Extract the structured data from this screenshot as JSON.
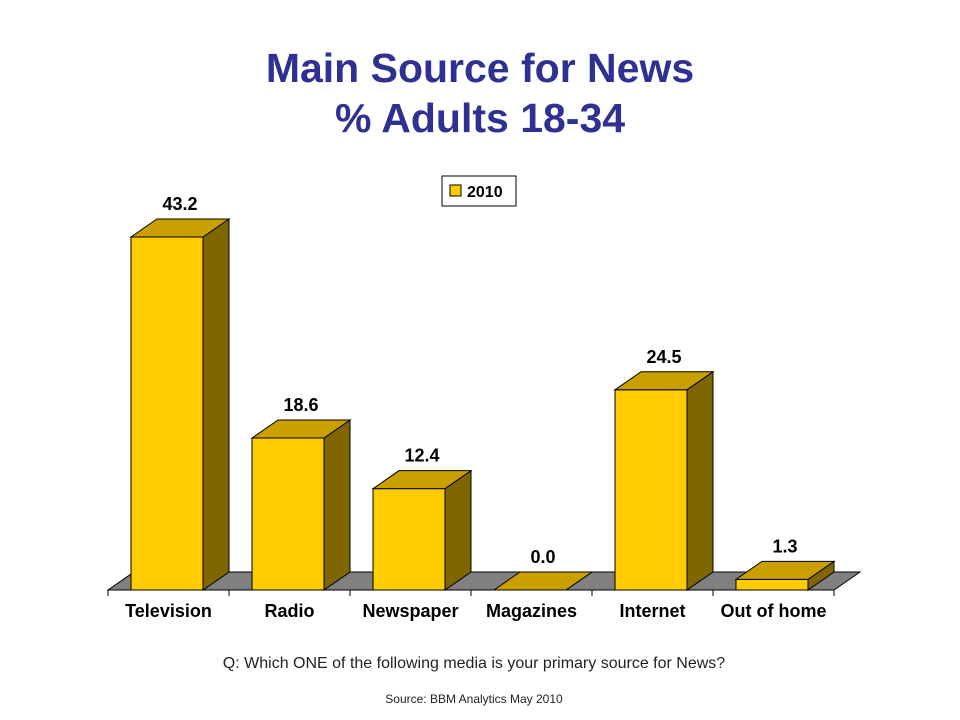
{
  "chart_data": {
    "type": "bar",
    "title": [
      "Main Source for News",
      "% Adults 18-34"
    ],
    "categories": [
      "Television",
      "Radio",
      "Newspaper",
      "Magazines",
      "Internet",
      "Out of home"
    ],
    "series": [
      {
        "name": "2010",
        "values": [
          43.2,
          18.6,
          12.4,
          0.0,
          24.5,
          1.3
        ],
        "color": "#ffcc00"
      }
    ],
    "data_labels": [
      "43.2",
      "18.6",
      "12.4",
      "0.0",
      "24.5",
      "1.3"
    ],
    "ylim": [
      0,
      45
    ],
    "grid": false,
    "legend_position": "top-center",
    "style": "3d",
    "colors": {
      "front": "#ffcc00",
      "top": "#c9a000",
      "side": "#7f6600",
      "floor": "#808080",
      "title": "#2e3192"
    }
  },
  "footer": {
    "question": "Q: Which ONE of the following media is your primary source for News?",
    "source": "Source: BBM Analytics May 2010"
  }
}
